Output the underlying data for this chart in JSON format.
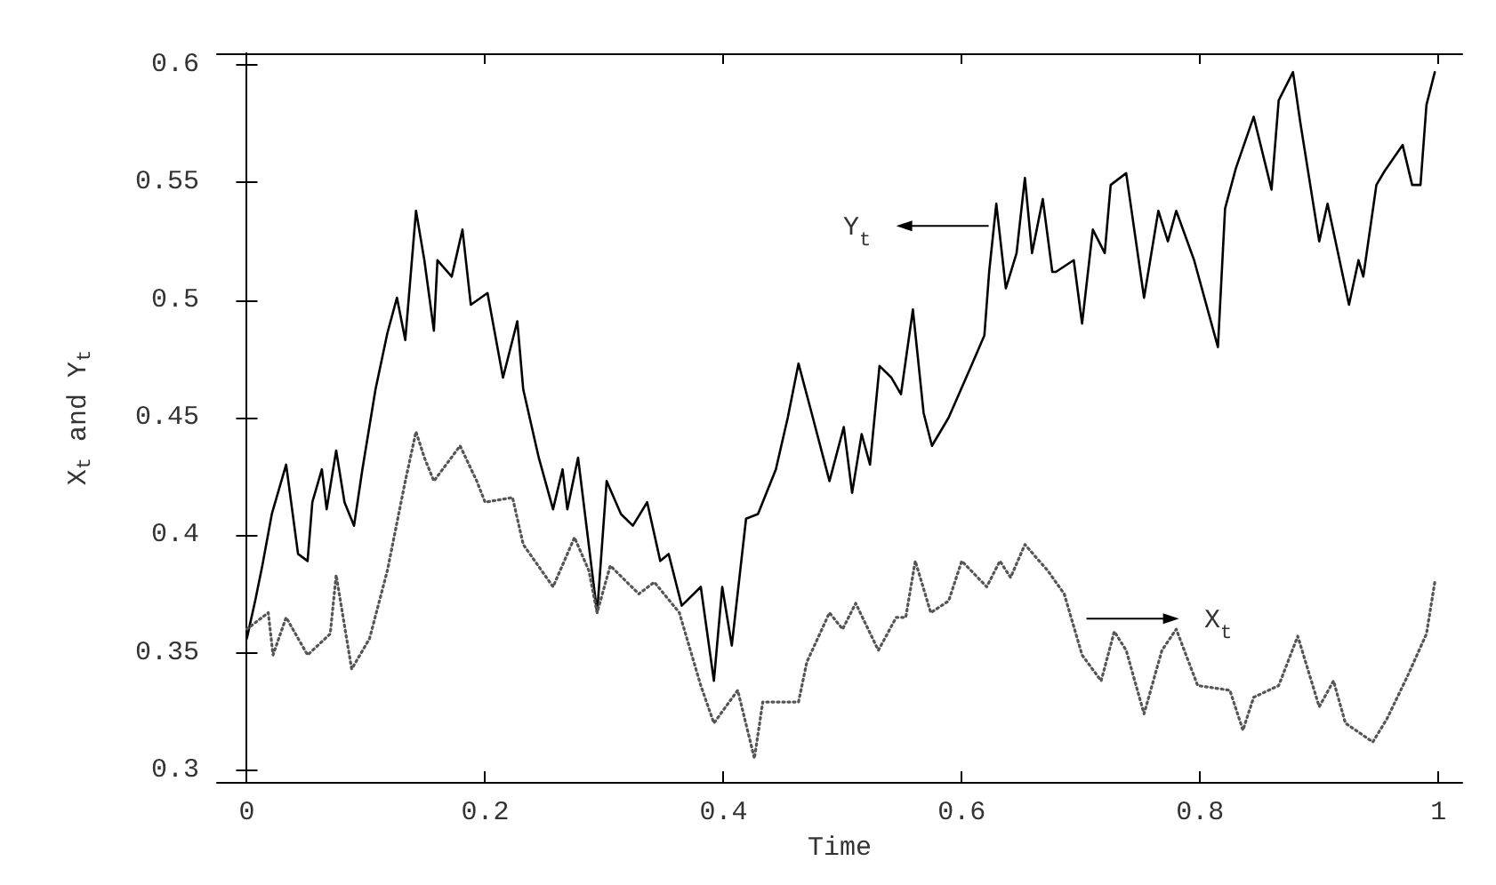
{
  "chart_data": {
    "type": "line",
    "xlabel": "Time",
    "ylabel": "X$_{t}$ and Y$_{t}$",
    "xlim": [
      -0.025,
      1.02
    ],
    "ylim": [
      0.295,
      0.605
    ],
    "xticks": [
      0,
      0.2,
      0.4,
      0.6,
      0.8,
      1
    ],
    "yticks": [
      0.3,
      0.35,
      0.4,
      0.45,
      0.5,
      0.55,
      0.6
    ],
    "grid": false,
    "marker": "none",
    "series": [
      {
        "color": "#000000",
        "line_style": "solid",
        "x": [
          0,
          0.007,
          0.013,
          0.021,
          0.033,
          0.043,
          0.051,
          0.055,
          0.063,
          0.067,
          0.075,
          0.082,
          0.09,
          0.097,
          0.108,
          0.118,
          0.126,
          0.133,
          0.142,
          0.149,
          0.157,
          0.16,
          0.172,
          0.181,
          0.188,
          0.202,
          0.215,
          0.227,
          0.232,
          0.245,
          0.257,
          0.265,
          0.269,
          0.278,
          0.294,
          0.302,
          0.314,
          0.324,
          0.336,
          0.347,
          0.354,
          0.365,
          0.381,
          0.392,
          0.399,
          0.407,
          0.419,
          0.429,
          0.444,
          0.454,
          0.463,
          0.474,
          0.489,
          0.501,
          0.508,
          0.516,
          0.523,
          0.531,
          0.541,
          0.549,
          0.559,
          0.568,
          0.575,
          0.589,
          0.608,
          0.619,
          0.623,
          0.629,
          0.637,
          0.646,
          0.653,
          0.659,
          0.668,
          0.676,
          0.679,
          0.694,
          0.701,
          0.71,
          0.72,
          0.725,
          0.738,
          0.753,
          0.765,
          0.773,
          0.78,
          0.795,
          0.815,
          0.821,
          0.83,
          0.845,
          0.86,
          0.866,
          0.878,
          0.884,
          0.9,
          0.907,
          0.925,
          0.933,
          0.937,
          0.948,
          0.955,
          0.97,
          0.978,
          0.985,
          0.99,
          0.997
        ],
        "values": [
          0.356,
          0.372,
          0.387,
          0.409,
          0.43,
          0.392,
          0.389,
          0.414,
          0.428,
          0.411,
          0.436,
          0.414,
          0.404,
          0.428,
          0.462,
          0.486,
          0.501,
          0.483,
          0.538,
          0.517,
          0.487,
          0.517,
          0.51,
          0.53,
          0.498,
          0.503,
          0.467,
          0.491,
          0.462,
          0.433,
          0.411,
          0.428,
          0.411,
          0.433,
          0.367,
          0.423,
          0.409,
          0.404,
          0.414,
          0.389,
          0.392,
          0.37,
          0.378,
          0.338,
          0.378,
          0.353,
          0.407,
          0.409,
          0.428,
          0.45,
          0.473,
          0.452,
          0.423,
          0.446,
          0.418,
          0.443,
          0.43,
          0.472,
          0.467,
          0.46,
          0.496,
          0.452,
          0.438,
          0.45,
          0.472,
          0.485,
          0.512,
          0.541,
          0.505,
          0.52,
          0.552,
          0.52,
          0.543,
          0.512,
          0.512,
          0.517,
          0.49,
          0.53,
          0.52,
          0.549,
          0.554,
          0.501,
          0.538,
          0.525,
          0.538,
          0.517,
          0.48,
          0.539,
          0.556,
          0.578,
          0.547,
          0.585,
          0.597,
          0.576,
          0.525,
          0.541,
          0.498,
          0.517,
          0.51,
          0.549,
          0.555,
          0.566,
          0.549,
          0.549,
          0.583,
          0.597
        ]
      },
      {
        "color": "#555555",
        "line_style": "dotted",
        "x": [
          0,
          0.018,
          0.022,
          0.033,
          0.051,
          0.07,
          0.075,
          0.088,
          0.103,
          0.118,
          0.133,
          0.142,
          0.149,
          0.157,
          0.179,
          0.193,
          0.2,
          0.223,
          0.232,
          0.257,
          0.275,
          0.287,
          0.294,
          0.305,
          0.329,
          0.342,
          0.363,
          0.381,
          0.392,
          0.412,
          0.426,
          0.433,
          0.463,
          0.47,
          0.489,
          0.5,
          0.511,
          0.53,
          0.545,
          0.553,
          0.561,
          0.574,
          0.589,
          0.6,
          0.621,
          0.632,
          0.641,
          0.653,
          0.672,
          0.686,
          0.701,
          0.717,
          0.728,
          0.738,
          0.753,
          0.768,
          0.78,
          0.798,
          0.825,
          0.836,
          0.845,
          0.866,
          0.882,
          0.9,
          0.912,
          0.922,
          0.945,
          0.957,
          0.975,
          0.99,
          0.997
        ],
        "values": [
          0.36,
          0.367,
          0.349,
          0.365,
          0.349,
          0.358,
          0.383,
          0.343,
          0.356,
          0.385,
          0.423,
          0.444,
          0.433,
          0.423,
          0.438,
          0.423,
          0.414,
          0.416,
          0.396,
          0.378,
          0.399,
          0.385,
          0.367,
          0.387,
          0.375,
          0.38,
          0.367,
          0.336,
          0.32,
          0.334,
          0.305,
          0.329,
          0.329,
          0.346,
          0.367,
          0.36,
          0.371,
          0.351,
          0.365,
          0.365,
          0.389,
          0.367,
          0.372,
          0.389,
          0.378,
          0.389,
          0.382,
          0.396,
          0.385,
          0.375,
          0.349,
          0.338,
          0.359,
          0.351,
          0.324,
          0.351,
          0.36,
          0.336,
          0.334,
          0.317,
          0.331,
          0.336,
          0.357,
          0.327,
          0.338,
          0.32,
          0.312,
          0.322,
          0.341,
          0.358,
          0.38
        ]
      }
    ],
    "annotations": [
      "Y$_{t}$",
      "X$_{t}$"
    ]
  }
}
